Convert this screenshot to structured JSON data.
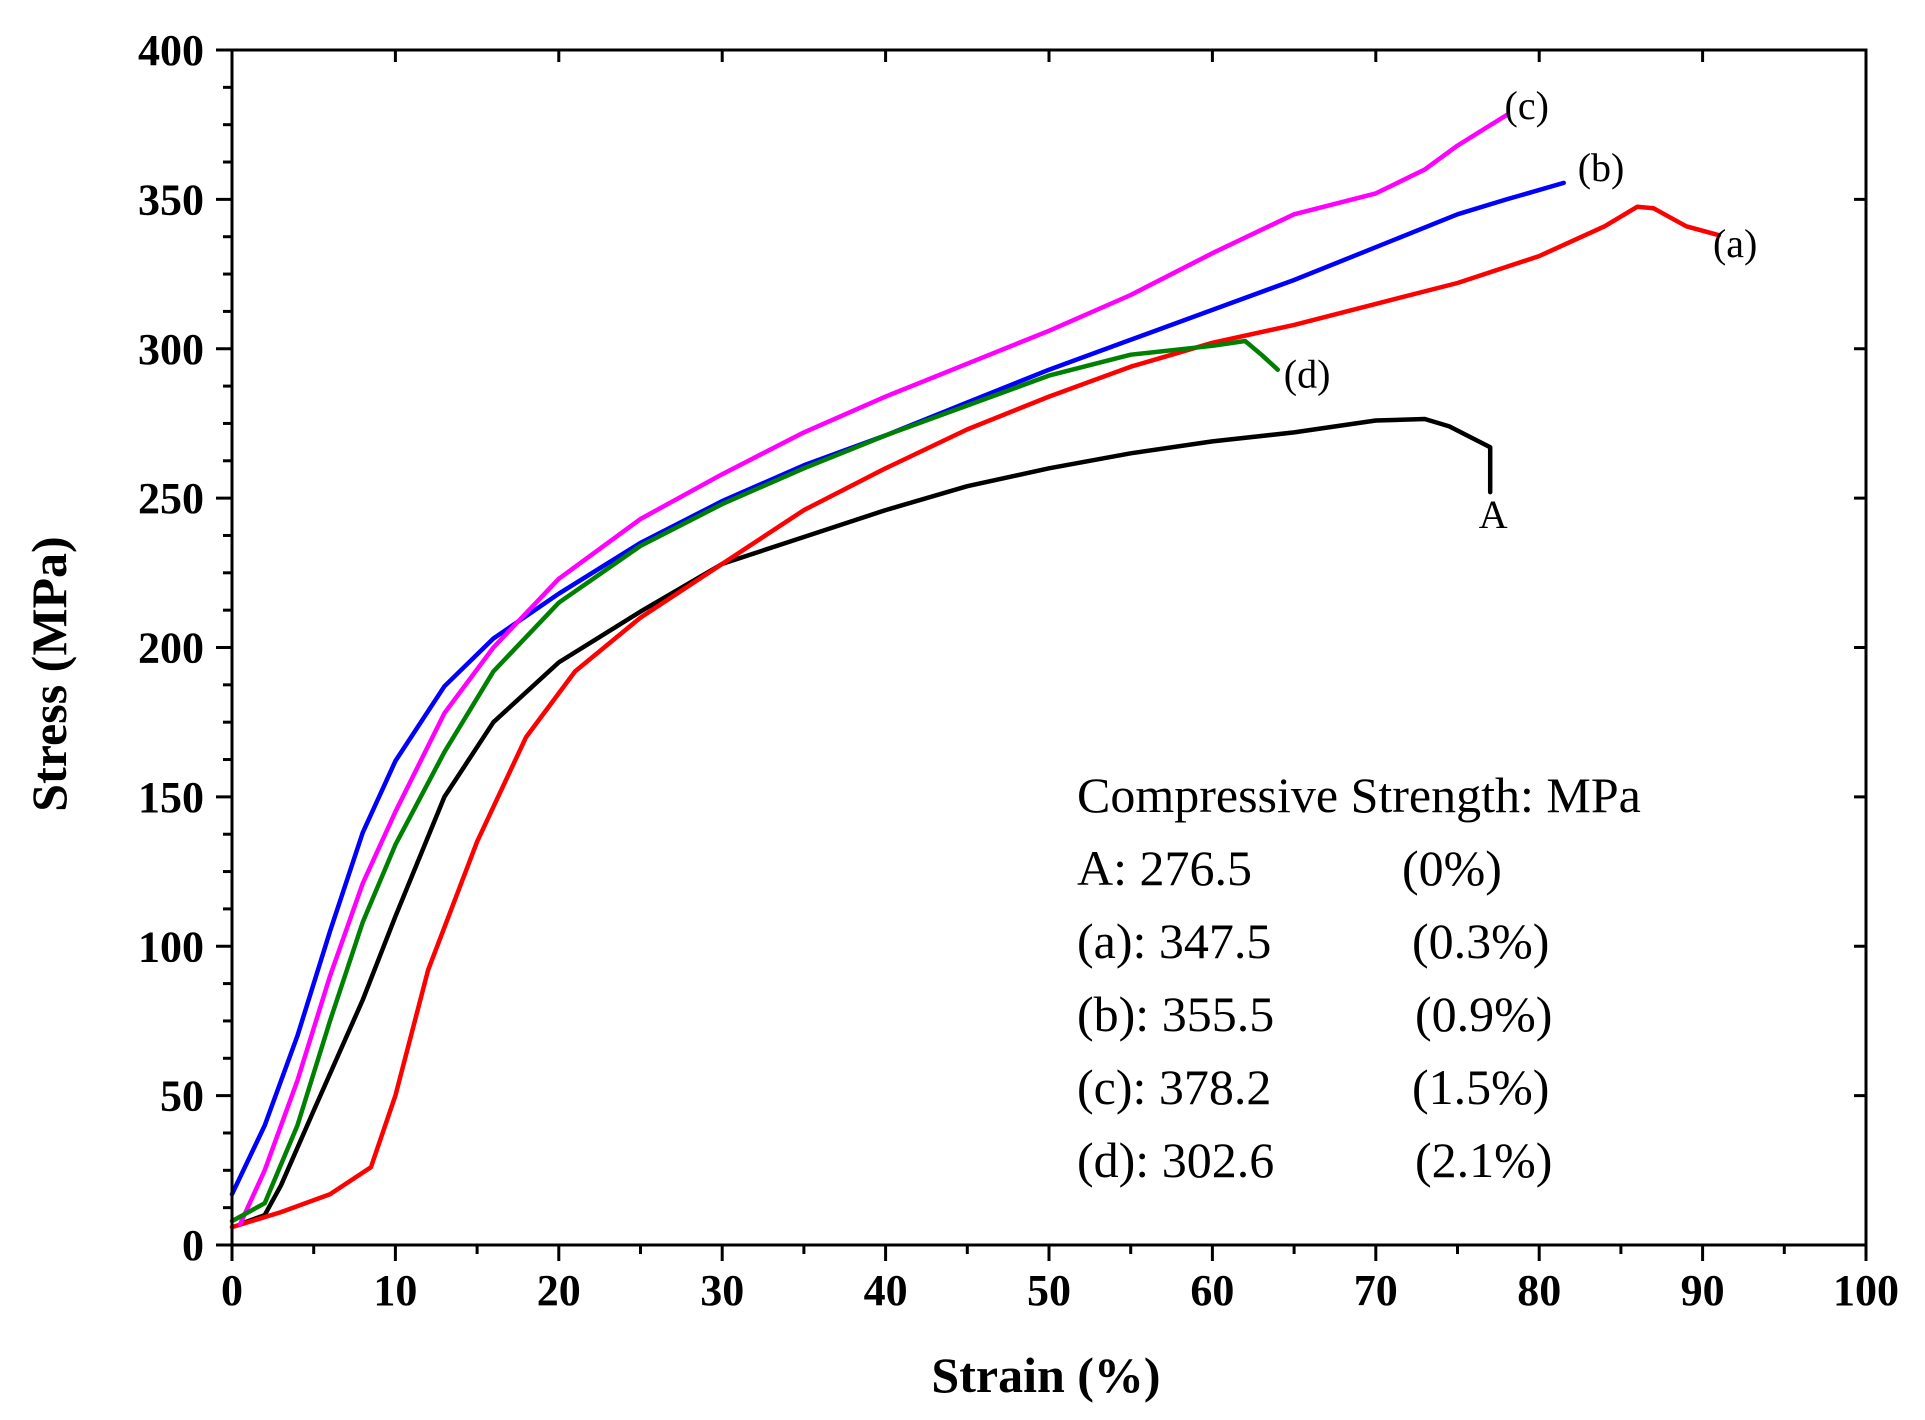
{
  "chart_data": {
    "type": "line",
    "title": "",
    "xlabel": "Strain (%)",
    "ylabel": "Stress (MPa)",
    "xlim": [
      0,
      100
    ],
    "ylim": [
      0,
      400
    ],
    "x_ticks": [
      0,
      10,
      20,
      30,
      40,
      50,
      60,
      70,
      80,
      90,
      100
    ],
    "y_ticks": [
      0,
      50,
      100,
      150,
      200,
      250,
      300,
      350,
      400
    ],
    "grid": false,
    "series": [
      {
        "name": "A",
        "color": "#000000",
        "points": [
          [
            0.5,
            7
          ],
          [
            2,
            10
          ],
          [
            3,
            20
          ],
          [
            5,
            45
          ],
          [
            8,
            82
          ],
          [
            10,
            110
          ],
          [
            13,
            150
          ],
          [
            16,
            175
          ],
          [
            20,
            195
          ],
          [
            25,
            212
          ],
          [
            30,
            228
          ],
          [
            35,
            237
          ],
          [
            40,
            246
          ],
          [
            45,
            254
          ],
          [
            50,
            260
          ],
          [
            55,
            265
          ],
          [
            60,
            269
          ],
          [
            65,
            272
          ],
          [
            70,
            276
          ],
          [
            73,
            276.5
          ],
          [
            74.5,
            274
          ],
          [
            77,
            267
          ],
          [
            77,
            252
          ]
        ]
      },
      {
        "name": "(a)",
        "color": "#ff0000",
        "points": [
          [
            0,
            6
          ],
          [
            3,
            11
          ],
          [
            6,
            17
          ],
          [
            8.5,
            26
          ],
          [
            10,
            50
          ],
          [
            12,
            92
          ],
          [
            15,
            135
          ],
          [
            18,
            170
          ],
          [
            21,
            192
          ],
          [
            25,
            210
          ],
          [
            30,
            228
          ],
          [
            35,
            246
          ],
          [
            40,
            260
          ],
          [
            45,
            273
          ],
          [
            50,
            284
          ],
          [
            55,
            294
          ],
          [
            60,
            302
          ],
          [
            65,
            308
          ],
          [
            70,
            315
          ],
          [
            75,
            322
          ],
          [
            80,
            331
          ],
          [
            84,
            341
          ],
          [
            86,
            347.5
          ],
          [
            87,
            347
          ],
          [
            89,
            341
          ],
          [
            91,
            338
          ]
        ]
      },
      {
        "name": "(b)",
        "color": "#0000ff",
        "points": [
          [
            0,
            17
          ],
          [
            2,
            40
          ],
          [
            4,
            70
          ],
          [
            6,
            105
          ],
          [
            8,
            138
          ],
          [
            10,
            162
          ],
          [
            13,
            187
          ],
          [
            16,
            203
          ],
          [
            20,
            218
          ],
          [
            25,
            235
          ],
          [
            30,
            249
          ],
          [
            35,
            261
          ],
          [
            40,
            271
          ],
          [
            45,
            282
          ],
          [
            50,
            293
          ],
          [
            55,
            303
          ],
          [
            60,
            313
          ],
          [
            65,
            323
          ],
          [
            70,
            334
          ],
          [
            75,
            345
          ],
          [
            78,
            350
          ],
          [
            81.5,
            355.5
          ]
        ]
      },
      {
        "name": "(c)",
        "color": "#ff00ff",
        "points": [
          [
            0.5,
            7
          ],
          [
            2,
            25
          ],
          [
            4,
            55
          ],
          [
            6,
            90
          ],
          [
            8,
            121
          ],
          [
            10,
            145
          ],
          [
            13,
            178
          ],
          [
            16,
            200
          ],
          [
            20,
            223
          ],
          [
            25,
            243
          ],
          [
            30,
            258
          ],
          [
            35,
            272
          ],
          [
            40,
            284
          ],
          [
            45,
            295
          ],
          [
            50,
            306
          ],
          [
            55,
            318
          ],
          [
            60,
            332
          ],
          [
            65,
            345
          ],
          [
            70,
            352
          ],
          [
            73,
            360
          ],
          [
            75,
            368
          ],
          [
            78,
            378.2
          ]
        ]
      },
      {
        "name": "(d)",
        "color": "#008000",
        "points": [
          [
            0,
            8
          ],
          [
            2,
            14
          ],
          [
            4,
            40
          ],
          [
            6,
            75
          ],
          [
            8,
            108
          ],
          [
            10,
            134
          ],
          [
            13,
            165
          ],
          [
            16,
            192
          ],
          [
            20,
            215
          ],
          [
            25,
            234
          ],
          [
            30,
            248
          ],
          [
            35,
            260
          ],
          [
            40,
            271
          ],
          [
            45,
            281
          ],
          [
            50,
            291
          ],
          [
            55,
            298
          ],
          [
            60,
            301
          ],
          [
            62,
            302.6
          ],
          [
            63,
            298
          ],
          [
            64,
            293
          ]
        ]
      }
    ],
    "legend": {
      "title": "Compressive Strength: MPa",
      "entries": [
        {
          "label": "A: 276.5",
          "note": "(0%)"
        },
        {
          "label": "(a): 347.5",
          "note": "(0.3%)"
        },
        {
          "label": "(b): 355.5",
          "note": "(0.9%)"
        },
        {
          "label": "(c): 378.2",
          "note": "(1.5%)"
        },
        {
          "label": "(d): 302.6",
          "note": "(2.1%)"
        }
      ]
    }
  }
}
